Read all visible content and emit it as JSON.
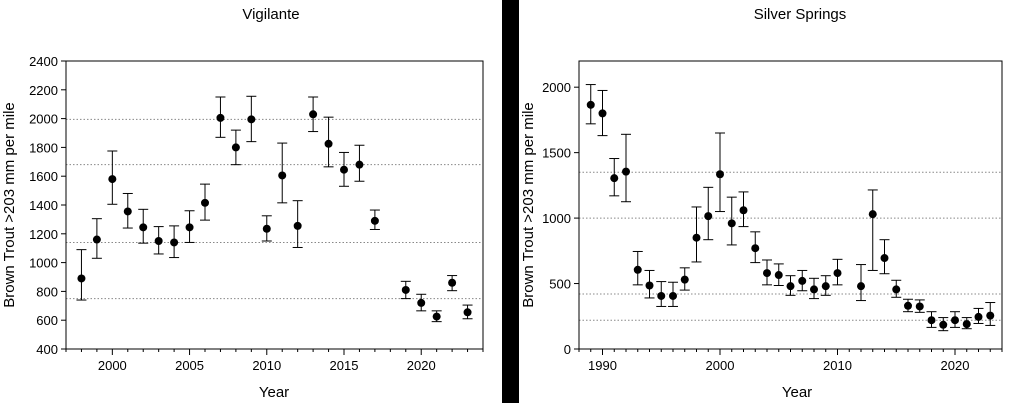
{
  "chart_data": [
    {
      "type": "scatter",
      "title": "Vigilante",
      "xlabel": "Year",
      "ylabel": "Brown Trout >203 mm per mile",
      "xlim": [
        1997,
        2024
      ],
      "ylim": [
        400,
        2400
      ],
      "xticks": [
        2000,
        2005,
        2010,
        2015,
        2020
      ],
      "yticks": [
        400,
        600,
        800,
        1000,
        1200,
        1400,
        1600,
        1800,
        2000,
        2200,
        2400
      ],
      "reference_lines": [
        750,
        1140,
        1680,
        1995
      ],
      "grid": false,
      "points": [
        {
          "x": 1998,
          "y": 890,
          "lo": 740,
          "hi": 1090
        },
        {
          "x": 1999,
          "y": 1160,
          "lo": 1030,
          "hi": 1305
        },
        {
          "x": 2000,
          "y": 1580,
          "lo": 1405,
          "hi": 1775
        },
        {
          "x": 2001,
          "y": 1355,
          "lo": 1240,
          "hi": 1480
        },
        {
          "x": 2002,
          "y": 1245,
          "lo": 1135,
          "hi": 1370
        },
        {
          "x": 2003,
          "y": 1150,
          "lo": 1060,
          "hi": 1250
        },
        {
          "x": 2004,
          "y": 1140,
          "lo": 1035,
          "hi": 1255
        },
        {
          "x": 2005,
          "y": 1245,
          "lo": 1140,
          "hi": 1360
        },
        {
          "x": 2006,
          "y": 1415,
          "lo": 1295,
          "hi": 1545
        },
        {
          "x": 2007,
          "y": 2005,
          "lo": 1870,
          "hi": 2150
        },
        {
          "x": 2008,
          "y": 1800,
          "lo": 1680,
          "hi": 1920
        },
        {
          "x": 2009,
          "y": 1995,
          "lo": 1840,
          "hi": 2155
        },
        {
          "x": 2010,
          "y": 1235,
          "lo": 1150,
          "hi": 1325
        },
        {
          "x": 2011,
          "y": 1605,
          "lo": 1415,
          "hi": 1830
        },
        {
          "x": 2012,
          "y": 1255,
          "lo": 1105,
          "hi": 1430
        },
        {
          "x": 2013,
          "y": 2030,
          "lo": 1910,
          "hi": 2150
        },
        {
          "x": 2014,
          "y": 1825,
          "lo": 1665,
          "hi": 2010
        },
        {
          "x": 2015,
          "y": 1645,
          "lo": 1530,
          "hi": 1765
        },
        {
          "x": 2016,
          "y": 1680,
          "lo": 1565,
          "hi": 1815
        },
        {
          "x": 2017,
          "y": 1290,
          "lo": 1230,
          "hi": 1365
        },
        {
          "x": 2019,
          "y": 810,
          "lo": 750,
          "hi": 870
        },
        {
          "x": 2020,
          "y": 720,
          "lo": 665,
          "hi": 780
        },
        {
          "x": 2021,
          "y": 625,
          "lo": 590,
          "hi": 665
        },
        {
          "x": 2022,
          "y": 860,
          "lo": 805,
          "hi": 910
        },
        {
          "x": 2023,
          "y": 655,
          "lo": 610,
          "hi": 705
        }
      ]
    },
    {
      "type": "scatter",
      "title": "Silver Springs",
      "xlabel": "Year",
      "ylabel": "Brown Trout >203 mm per mile",
      "xlim": [
        1988,
        2024
      ],
      "ylim": [
        0,
        2200
      ],
      "xticks": [
        1990,
        2000,
        2010,
        2020
      ],
      "yticks": [
        0,
        500,
        1000,
        1500,
        2000
      ],
      "reference_lines": [
        220,
        420,
        1000,
        1350
      ],
      "grid": false,
      "points": [
        {
          "x": 1989,
          "y": 1865,
          "lo": 1720,
          "hi": 2020
        },
        {
          "x": 1990,
          "y": 1800,
          "lo": 1630,
          "hi": 1975
        },
        {
          "x": 1991,
          "y": 1305,
          "lo": 1170,
          "hi": 1455
        },
        {
          "x": 1992,
          "y": 1355,
          "lo": 1125,
          "hi": 1640
        },
        {
          "x": 1993,
          "y": 605,
          "lo": 490,
          "hi": 745
        },
        {
          "x": 1994,
          "y": 485,
          "lo": 390,
          "hi": 600
        },
        {
          "x": 1995,
          "y": 405,
          "lo": 325,
          "hi": 515
        },
        {
          "x": 1996,
          "y": 405,
          "lo": 325,
          "hi": 510
        },
        {
          "x": 1997,
          "y": 530,
          "lo": 450,
          "hi": 620
        },
        {
          "x": 1998,
          "y": 850,
          "lo": 665,
          "hi": 1085
        },
        {
          "x": 1999,
          "y": 1015,
          "lo": 835,
          "hi": 1235
        },
        {
          "x": 2000,
          "y": 1335,
          "lo": 1050,
          "hi": 1650
        },
        {
          "x": 2001,
          "y": 960,
          "lo": 795,
          "hi": 1160
        },
        {
          "x": 2002,
          "y": 1060,
          "lo": 935,
          "hi": 1200
        },
        {
          "x": 2003,
          "y": 770,
          "lo": 660,
          "hi": 895
        },
        {
          "x": 2004,
          "y": 580,
          "lo": 490,
          "hi": 680
        },
        {
          "x": 2005,
          "y": 565,
          "lo": 485,
          "hi": 650
        },
        {
          "x": 2006,
          "y": 480,
          "lo": 410,
          "hi": 560
        },
        {
          "x": 2007,
          "y": 520,
          "lo": 445,
          "hi": 600
        },
        {
          "x": 2008,
          "y": 455,
          "lo": 385,
          "hi": 540
        },
        {
          "x": 2009,
          "y": 480,
          "lo": 410,
          "hi": 560
        },
        {
          "x": 2010,
          "y": 580,
          "lo": 490,
          "hi": 685
        },
        {
          "x": 2012,
          "y": 480,
          "lo": 370,
          "hi": 645
        },
        {
          "x": 2013,
          "y": 1030,
          "lo": 600,
          "hi": 1215
        },
        {
          "x": 2014,
          "y": 695,
          "lo": 575,
          "hi": 835
        },
        {
          "x": 2015,
          "y": 455,
          "lo": 395,
          "hi": 525
        },
        {
          "x": 2016,
          "y": 330,
          "lo": 285,
          "hi": 380
        },
        {
          "x": 2017,
          "y": 325,
          "lo": 280,
          "hi": 375
        },
        {
          "x": 2018,
          "y": 220,
          "lo": 165,
          "hi": 285
        },
        {
          "x": 2019,
          "y": 185,
          "lo": 140,
          "hi": 240
        },
        {
          "x": 2020,
          "y": 220,
          "lo": 165,
          "hi": 285
        },
        {
          "x": 2021,
          "y": 190,
          "lo": 155,
          "hi": 240
        },
        {
          "x": 2022,
          "y": 245,
          "lo": 195,
          "hi": 310
        },
        {
          "x": 2023,
          "y": 255,
          "lo": 180,
          "hi": 355
        }
      ]
    }
  ]
}
